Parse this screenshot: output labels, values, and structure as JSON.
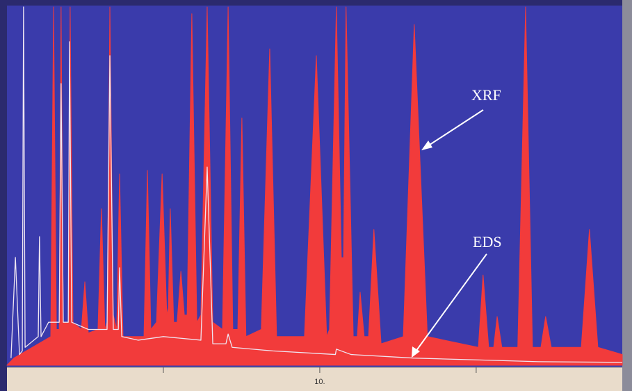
{
  "chart_data": {
    "type": "area",
    "xlim": [
      0,
      19.67
    ],
    "ylim": [
      0,
      100
    ],
    "xticks": [
      {
        "value": 5,
        "label": null
      },
      {
        "value": 10,
        "label": "10."
      },
      {
        "value": 15,
        "label": null
      }
    ],
    "series": [
      {
        "name": "XRF",
        "color": "#f23b3b",
        "fill": true,
        "x": [
          0,
          0.22,
          1.4,
          1.49,
          1.58,
          1.67,
          1.73,
          1.8,
          1.96,
          2.02,
          2.11,
          2.38,
          2.49,
          2.6,
          2.91,
          3.02,
          3.13,
          3.2,
          3.29,
          3.4,
          3.51,
          3.6,
          3.71,
          4.38,
          4.49,
          4.6,
          4.78,
          4.96,
          5.11,
          5.16,
          5.22,
          5.33,
          5.44,
          5.56,
          5.67,
          5.76,
          5.91,
          6.07,
          6.2,
          6.4,
          6.58,
          6.89,
          7.07,
          7.22,
          7.38,
          7.51,
          7.64,
          8.13,
          8.4,
          8.62,
          9.51,
          9.89,
          10.22,
          10.31,
          10.53,
          10.69,
          10.76,
          10.84,
          11.07,
          11.2,
          11.29,
          11.42,
          11.56,
          11.73,
          11.96,
          12.67,
          13.02,
          13.44,
          15.07,
          15.22,
          15.4,
          15.56,
          15.67,
          15.82,
          16.33,
          16.58,
          16.8,
          17.07,
          17.22,
          17.4,
          18.36,
          18.62,
          18.89,
          19.67
        ],
        "values": [
          0,
          2,
          8,
          100,
          10,
          10,
          100,
          12,
          12,
          100,
          12,
          10,
          23.3,
          9,
          10,
          43.7,
          10,
          12,
          100,
          14,
          10,
          53.4,
          8,
          8,
          54.4,
          10,
          12,
          53.4,
          14,
          16,
          43.7,
          12,
          12,
          26.2,
          14,
          14,
          98.1,
          12,
          14,
          100,
          12,
          10,
          100,
          10,
          10,
          69,
          8,
          10,
          88.3,
          8,
          8,
          86.4,
          8,
          10,
          100,
          30,
          30,
          100,
          8,
          8,
          20.4,
          8,
          8,
          37.9,
          6,
          8,
          95.1,
          8,
          5,
          25.2,
          5,
          5,
          13.6,
          5,
          5,
          100,
          5,
          5,
          13.6,
          5,
          5,
          37.9,
          5,
          3
        ]
      },
      {
        "name": "EDS",
        "color": "#efe6f2",
        "fill": false,
        "x": [
          0.13,
          0.27,
          0.4,
          0.49,
          0.53,
          0.58,
          1.0,
          1.04,
          1.09,
          1.33,
          1.67,
          1.73,
          1.8,
          1.96,
          2.0,
          2.07,
          2.6,
          3.2,
          3.29,
          3.4,
          3.56,
          3.6,
          3.67,
          4.2,
          5.0,
          6.2,
          6.4,
          6.58,
          7.0,
          7.07,
          7.2,
          8.5,
          10.5,
          10.53,
          11.0,
          13.0,
          15.0,
          17.0,
          19.67
        ],
        "values": [
          2,
          30.1,
          3,
          4,
          100,
          5,
          8,
          35.9,
          8,
          12,
          12,
          78.6,
          12,
          12,
          90.3,
          12,
          10,
          10,
          86.4,
          10,
          10,
          27.2,
          8,
          7,
          8,
          7,
          55.3,
          6,
          6,
          8.7,
          5,
          4,
          3,
          4.5,
          3,
          2,
          1.5,
          1,
          0.8
        ]
      }
    ]
  }
}
